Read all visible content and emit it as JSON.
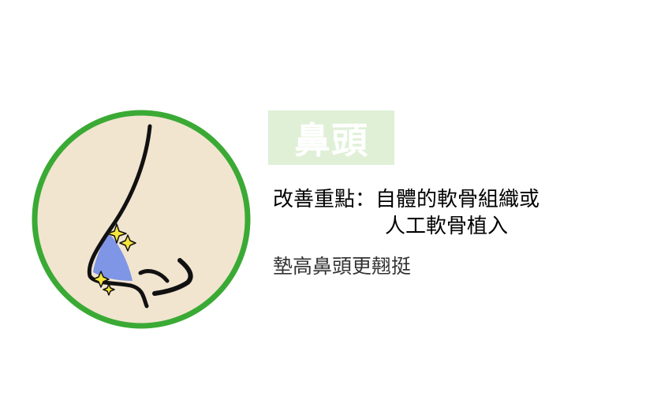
{
  "title": "鼻頭",
  "focus": {
    "label": "改善重點：",
    "line1": "自體的軟骨組織或",
    "line2": "人工軟骨植入"
  },
  "effect": "墊高鼻頭更翹挺",
  "colors": {
    "ring": "#3aaa35",
    "circle_fill": "#f1e5d0",
    "tip_highlight": "#7f95e6",
    "sparkle": "#f5e63a",
    "title_bg": "#dff0d6"
  },
  "icons": [
    "nose-profile-icon",
    "sparkle-icon"
  ]
}
